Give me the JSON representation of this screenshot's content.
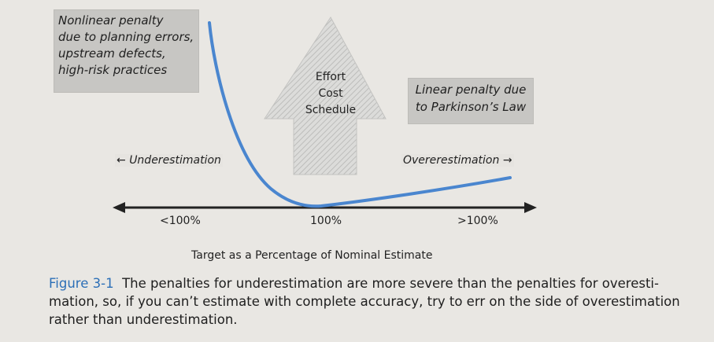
{
  "diagram": {
    "callout_left": {
      "lines": [
        "Nonlinear penalty",
        "due to planning errors,",
        "upstream defects,",
        "high-risk practices"
      ]
    },
    "arrow_label": {
      "lines": [
        "Effort",
        "Cost",
        "Schedule"
      ]
    },
    "callout_right": {
      "lines": [
        "Linear penalty due",
        "to Parkinson’s Law"
      ]
    },
    "under_label": "Underestimation",
    "over_label": "Overerestimation",
    "ticks": [
      "<100%",
      "100%",
      ">100%"
    ],
    "axis_title": "Target as a Percentage of Nominal Estimate",
    "colors": {
      "curve": "#4a86cf",
      "arrow_hatch": "#cfcfcd",
      "callout_bg": "#c7c6c3",
      "caption_accent": "#2c6fb7"
    }
  },
  "caption": {
    "figure_number": "Figure 3-1",
    "line1_rest": "  The penalties for underestimation are more severe than the penalties for overesti-",
    "line2": "mation, so, if you can’t estimate with complete accuracy, try to err on the side of overestimation",
    "line3": "rather than underestimation."
  }
}
